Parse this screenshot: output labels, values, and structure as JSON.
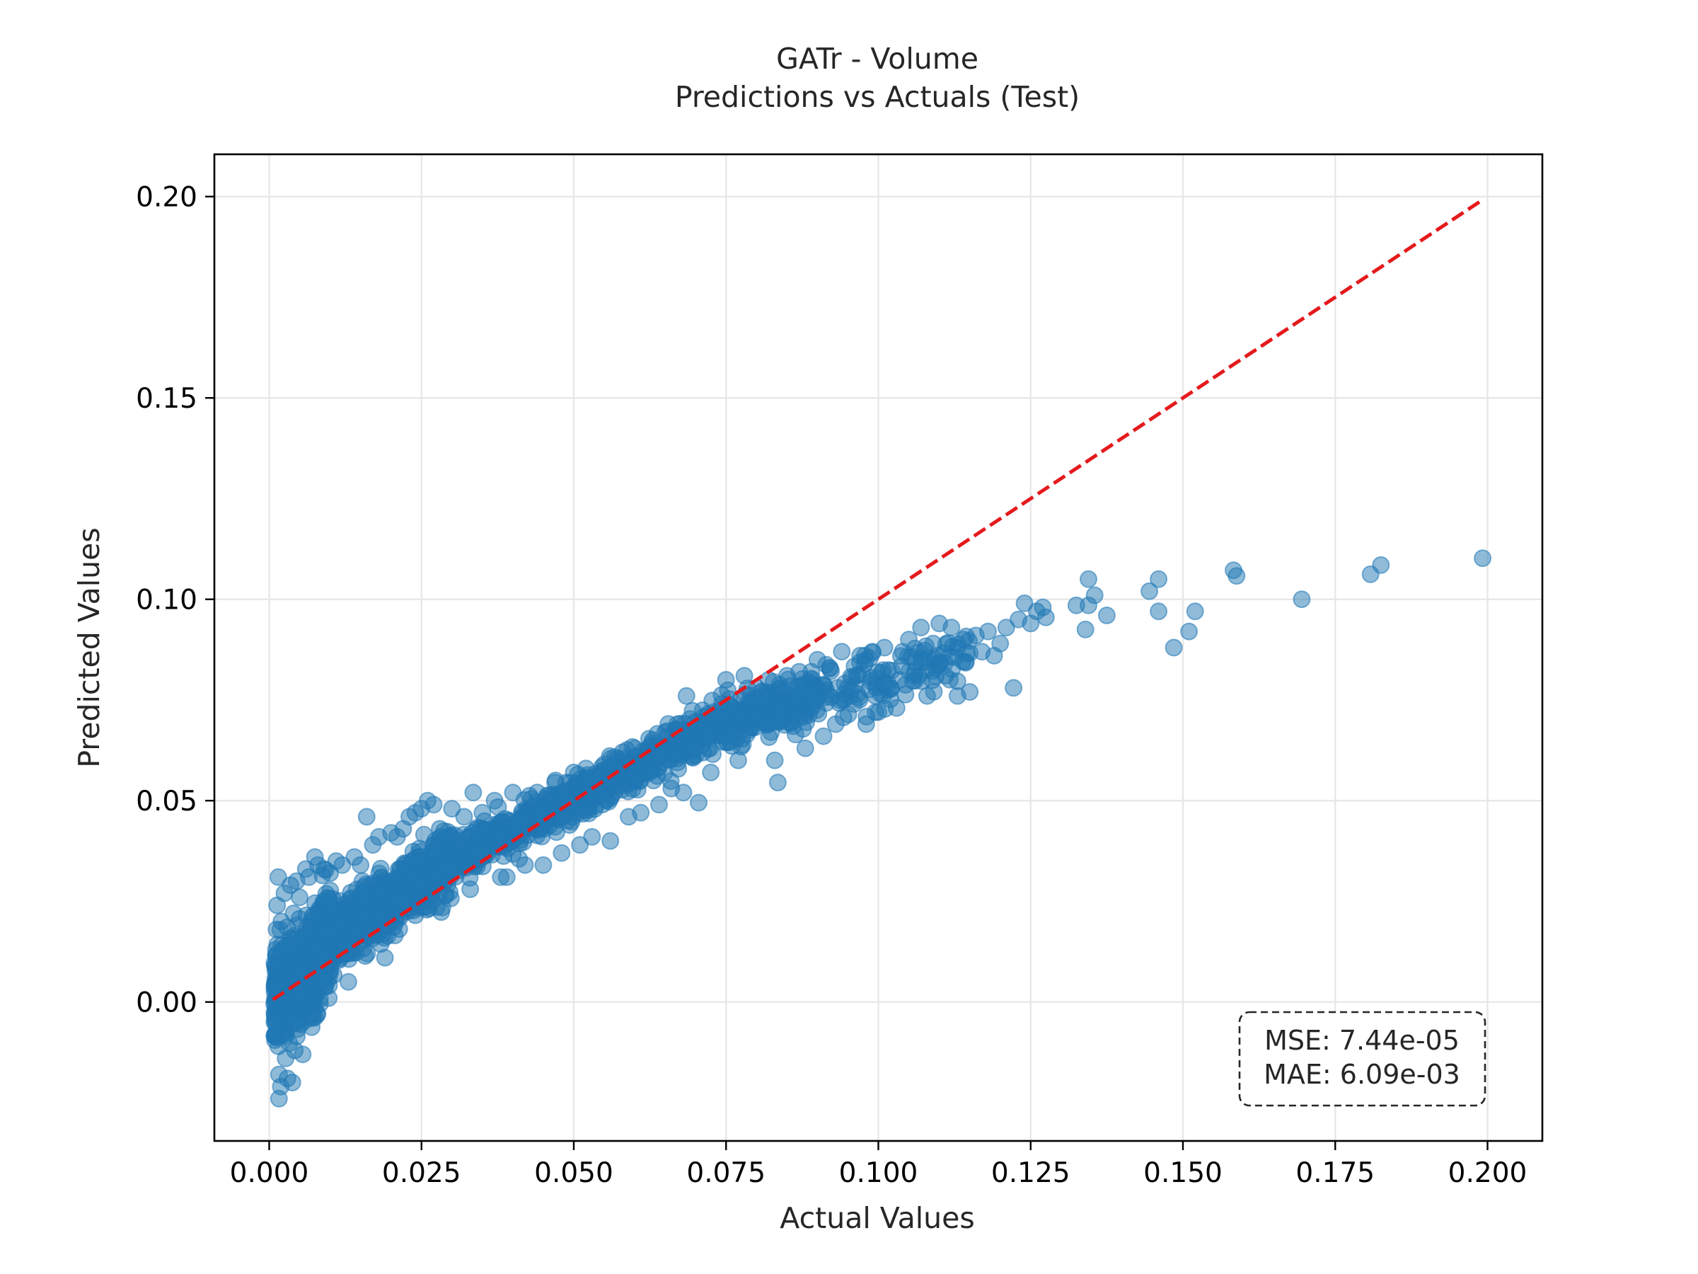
{
  "chart_data": {
    "type": "scatter",
    "title": "GATr - Volume",
    "subtitle": "Predictions vs Actuals (Test)",
    "xlabel": "Actual Values",
    "ylabel": "Predicted Values",
    "xlim": [
      -0.009,
      0.209
    ],
    "ylim": [
      -0.0345,
      0.2105
    ],
    "xticks": [
      0.0,
      0.025,
      0.05,
      0.075,
      0.1,
      0.125,
      0.15,
      0.175,
      0.2
    ],
    "xtick_labels": [
      "0.000",
      "0.025",
      "0.050",
      "0.075",
      "0.100",
      "0.125",
      "0.150",
      "0.175",
      "0.200"
    ],
    "yticks": [
      0.0,
      0.05,
      0.1,
      0.15,
      0.2
    ],
    "ytick_labels": [
      "0.00",
      "0.05",
      "0.10",
      "0.15",
      "0.20"
    ],
    "grid": true,
    "colors": {
      "points": "#1f77b4",
      "reference_line": "#e41a1c",
      "grid": "#e6e6e6",
      "axes": "#000000"
    },
    "reference_line": {
      "name": "y = x",
      "x": [
        0.0006,
        0.199
      ],
      "y": [
        0.0006,
        0.199
      ],
      "style": "dashed"
    },
    "stats": {
      "mse": "MSE: 7.44e-05",
      "mae": "MAE: 6.09e-03"
    },
    "series": [
      {
        "name": "Test predictions",
        "points": [
          [
            0.0008,
            -0.0005
          ],
          [
            0.0009,
            0.004
          ],
          [
            0.001,
            0.009
          ],
          [
            0.0011,
            0.013
          ],
          [
            0.0012,
            0.018
          ],
          [
            0.0013,
            0.024
          ],
          [
            0.0015,
            0.031
          ],
          [
            0.0015,
            -0.011
          ],
          [
            0.0016,
            -0.018
          ],
          [
            0.0016,
            -0.024
          ],
          [
            0.0019,
            -0.021
          ],
          [
            0.002,
            0.02
          ],
          [
            0.0022,
            -0.008
          ],
          [
            0.0025,
            0.027
          ],
          [
            0.0027,
            -0.014
          ],
          [
            0.003,
            -0.019
          ],
          [
            0.0032,
            0.014
          ],
          [
            0.0035,
            0.029
          ],
          [
            0.0038,
            -0.02
          ],
          [
            0.004,
            0.022
          ],
          [
            0.0042,
            -0.012
          ],
          [
            0.0045,
            0.03
          ],
          [
            0.005,
            0.026
          ],
          [
            0.0055,
            -0.013
          ],
          [
            0.006,
            0.033
          ],
          [
            0.0065,
            0.031
          ],
          [
            0.007,
            -0.004
          ],
          [
            0.0075,
            0.036
          ],
          [
            0.008,
            0.034
          ],
          [
            0.009,
            0.033
          ],
          [
            0.01,
            0.032
          ],
          [
            0.011,
            0.035
          ],
          [
            0.012,
            0.034
          ],
          [
            0.013,
            0.005
          ],
          [
            0.014,
            0.036
          ],
          [
            0.015,
            0.034
          ],
          [
            0.016,
            0.046
          ],
          [
            0.017,
            0.039
          ],
          [
            0.018,
            0.041
          ],
          [
            0.019,
            0.011
          ],
          [
            0.02,
            0.042
          ],
          [
            0.021,
            0.041
          ],
          [
            0.022,
            0.043
          ],
          [
            0.023,
            0.046
          ],
          [
            0.024,
            0.047
          ],
          [
            0.025,
            0.048
          ],
          [
            0.026,
            0.05
          ],
          [
            0.027,
            0.049
          ],
          [
            0.028,
            0.043
          ],
          [
            0.03,
            0.048
          ],
          [
            0.032,
            0.046
          ],
          [
            0.033,
            0.028
          ],
          [
            0.035,
            0.047
          ],
          [
            0.0335,
            0.052
          ],
          [
            0.037,
            0.05
          ],
          [
            0.038,
            0.031
          ],
          [
            0.04,
            0.052
          ],
          [
            0.039,
            0.031
          ],
          [
            0.042,
            0.034
          ],
          [
            0.044,
            0.052
          ],
          [
            0.045,
            0.034
          ],
          [
            0.047,
            0.055
          ],
          [
            0.048,
            0.037
          ],
          [
            0.05,
            0.057
          ],
          [
            0.051,
            0.039
          ],
          [
            0.052,
            0.058
          ],
          [
            0.053,
            0.041
          ],
          [
            0.055,
            0.059
          ],
          [
            0.056,
            0.04
          ],
          [
            0.058,
            0.062
          ],
          [
            0.059,
            0.046
          ],
          [
            0.06,
            0.063
          ],
          [
            0.061,
            0.047
          ],
          [
            0.063,
            0.065
          ],
          [
            0.064,
            0.049
          ],
          [
            0.065,
            0.067
          ],
          [
            0.066,
            0.053
          ],
          [
            0.067,
            0.069
          ],
          [
            0.068,
            0.052
          ],
          [
            0.0685,
            0.076
          ],
          [
            0.07,
            0.068
          ],
          [
            0.0705,
            0.0495
          ],
          [
            0.072,
            0.071
          ],
          [
            0.0725,
            0.057
          ],
          [
            0.074,
            0.071
          ],
          [
            0.075,
            0.08
          ],
          [
            0.076,
            0.073
          ],
          [
            0.077,
            0.06
          ],
          [
            0.078,
            0.081
          ],
          [
            0.079,
            0.074
          ],
          [
            0.08,
            0.078
          ],
          [
            0.0835,
            0.0545
          ],
          [
            0.081,
            0.076
          ],
          [
            0.082,
            0.08
          ],
          [
            0.083,
            0.06
          ],
          [
            0.084,
            0.078
          ],
          [
            0.085,
            0.081
          ],
          [
            0.086,
            0.0685
          ],
          [
            0.087,
            0.082
          ],
          [
            0.088,
            0.063
          ],
          [
            0.089,
            0.082
          ],
          [
            0.09,
            0.085
          ],
          [
            0.091,
            0.066
          ],
          [
            0.092,
            0.083
          ],
          [
            0.093,
            0.069
          ],
          [
            0.094,
            0.087
          ],
          [
            0.095,
            0.078
          ],
          [
            0.096,
            0.074
          ],
          [
            0.097,
            0.086
          ],
          [
            0.098,
            0.069
          ],
          [
            0.099,
            0.087
          ],
          [
            0.1,
            0.072
          ],
          [
            0.101,
            0.088
          ],
          [
            0.102,
            0.078
          ],
          [
            0.103,
            0.073
          ],
          [
            0.104,
            0.087
          ],
          [
            0.105,
            0.09
          ],
          [
            0.106,
            0.082
          ],
          [
            0.107,
            0.093
          ],
          [
            0.108,
            0.076
          ],
          [
            0.109,
            0.089
          ],
          [
            0.11,
            0.094
          ],
          [
            0.111,
            0.081
          ],
          [
            0.112,
            0.093
          ],
          [
            0.113,
            0.076
          ],
          [
            0.114,
            0.09
          ],
          [
            0.115,
            0.077
          ],
          [
            0.116,
            0.091
          ],
          [
            0.117,
            0.087
          ],
          [
            0.118,
            0.092
          ],
          [
            0.119,
            0.086
          ],
          [
            0.12,
            0.089
          ],
          [
            0.121,
            0.093
          ],
          [
            0.1222,
            0.078
          ],
          [
            0.123,
            0.095
          ],
          [
            0.124,
            0.099
          ],
          [
            0.125,
            0.094
          ],
          [
            0.126,
            0.097
          ],
          [
            0.127,
            0.098
          ],
          [
            0.1275,
            0.0955
          ],
          [
            0.1325,
            0.0985
          ],
          [
            0.134,
            0.0925
          ],
          [
            0.1345,
            0.105
          ],
          [
            0.1355,
            0.101
          ],
          [
            0.1345,
            0.0985
          ],
          [
            0.1375,
            0.096
          ],
          [
            0.1445,
            0.102
          ],
          [
            0.146,
            0.105
          ],
          [
            0.146,
            0.097
          ],
          [
            0.1485,
            0.088
          ],
          [
            0.151,
            0.092
          ],
          [
            0.152,
            0.097
          ],
          [
            0.1583,
            0.1072
          ],
          [
            0.1588,
            0.1058
          ],
          [
            0.1695,
            0.1
          ],
          [
            0.1808,
            0.1062
          ],
          [
            0.1825,
            0.1085
          ],
          [
            0.1992,
            0.1102
          ]
        ]
      }
    ]
  }
}
